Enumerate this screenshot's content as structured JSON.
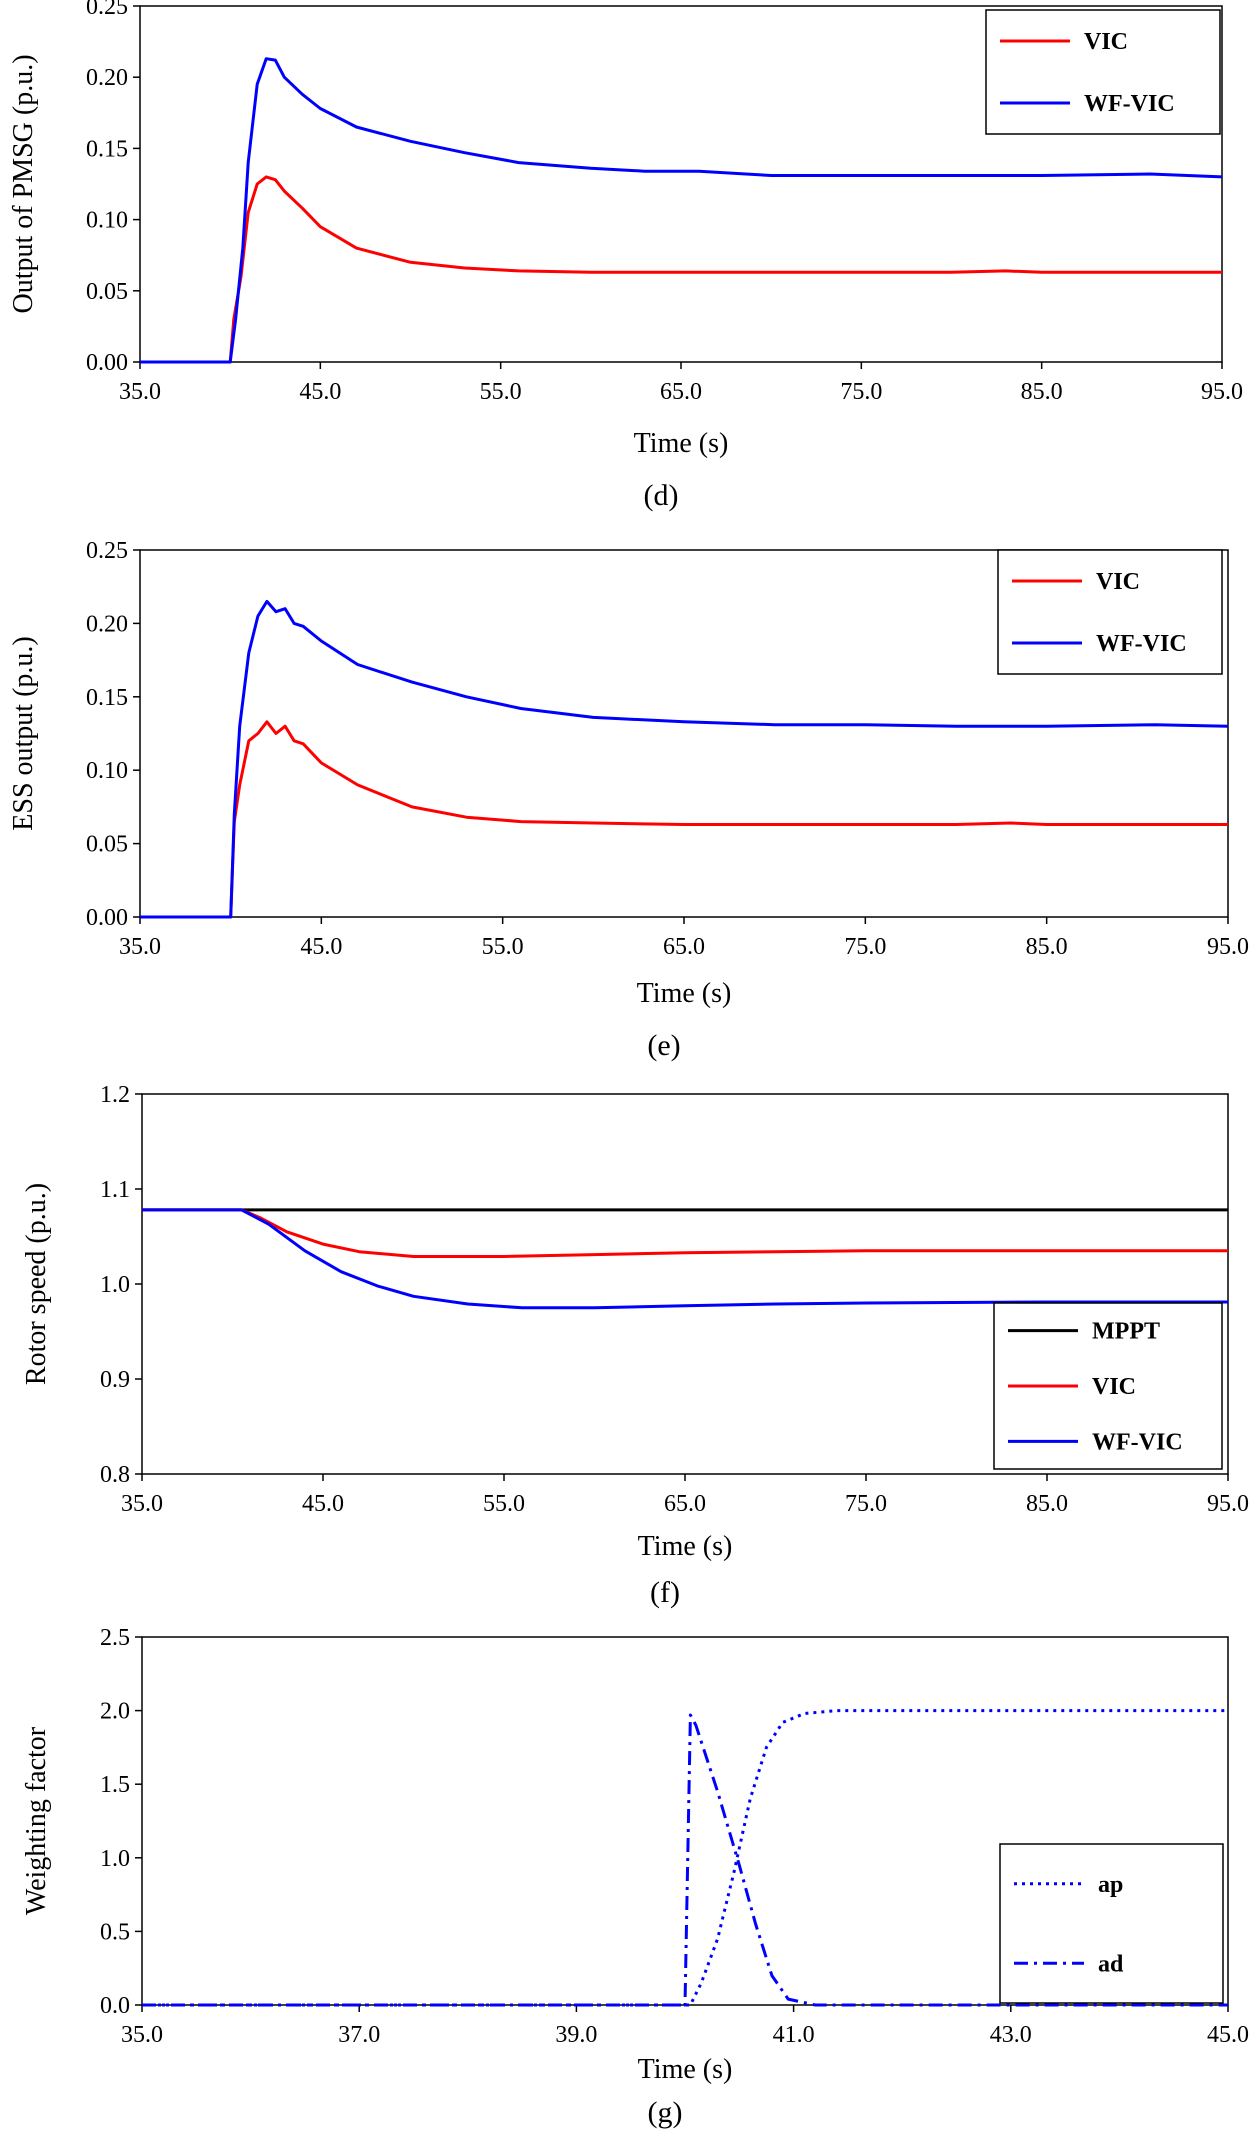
{
  "chart_data": [
    {
      "id": "d",
      "type": "line",
      "caption": "(d)",
      "xlabel": "Time (s)",
      "ylabel": "Output of PMSG (p.u.)",
      "xlim": [
        35,
        95
      ],
      "ylim": [
        0,
        0.25
      ],
      "x_ticks": [
        35,
        45,
        55,
        65,
        75,
        85,
        95
      ],
      "x_tick_labels": [
        "35.0",
        "45.0",
        "55.0",
        "65.0",
        "75.0",
        "85.0",
        "95.0"
      ],
      "y_ticks": [
        0,
        0.05,
        0.1,
        0.15,
        0.2,
        0.25
      ],
      "y_tick_labels": [
        "0.00",
        "0.05",
        "0.10",
        "0.15",
        "0.20",
        "0.25"
      ],
      "legend_position": "top-right",
      "series": [
        {
          "name": "VIC",
          "color": "#ff0000",
          "dash": "solid",
          "x": [
            35,
            40.0,
            40.2,
            40.6,
            41.0,
            41.5,
            42.0,
            42.5,
            43.0,
            44.0,
            45.0,
            47.0,
            50.0,
            53.0,
            56.0,
            60.0,
            65.0,
            70.0,
            75.0,
            80.0,
            83.0,
            85.0,
            90.0,
            95.0
          ],
          "y": [
            0,
            0,
            0.03,
            0.06,
            0.105,
            0.125,
            0.13,
            0.128,
            0.12,
            0.108,
            0.095,
            0.08,
            0.07,
            0.066,
            0.064,
            0.063,
            0.063,
            0.063,
            0.063,
            0.063,
            0.064,
            0.063,
            0.063,
            0.063
          ]
        },
        {
          "name": "WF-VIC",
          "color": "#0000ff",
          "dash": "solid",
          "x": [
            35,
            40.0,
            40.3,
            40.7,
            41.0,
            41.5,
            42.0,
            42.5,
            43.0,
            44.0,
            45.0,
            47.0,
            50.0,
            53.0,
            56.0,
            60.0,
            63.0,
            66.0,
            70.0,
            75.0,
            80.0,
            85.0,
            91.0,
            95.0
          ],
          "y": [
            0,
            0,
            0.03,
            0.08,
            0.14,
            0.195,
            0.213,
            0.212,
            0.2,
            0.188,
            0.178,
            0.165,
            0.155,
            0.147,
            0.14,
            0.136,
            0.134,
            0.134,
            0.131,
            0.131,
            0.131,
            0.131,
            0.132,
            0.13
          ]
        }
      ]
    },
    {
      "id": "e",
      "type": "line",
      "caption": "(e)",
      "xlabel": "Time (s)",
      "ylabel": "ESS output (p.u.)",
      "xlim": [
        35,
        95
      ],
      "ylim": [
        0,
        0.25
      ],
      "x_ticks": [
        35,
        45,
        55,
        65,
        75,
        85,
        95
      ],
      "x_tick_labels": [
        "35.0",
        "45.0",
        "55.0",
        "65.0",
        "75.0",
        "85.0",
        "95.0"
      ],
      "y_ticks": [
        0,
        0.05,
        0.1,
        0.15,
        0.2,
        0.25
      ],
      "y_tick_labels": [
        "0.00",
        "0.05",
        "0.10",
        "0.15",
        "0.20",
        "0.25"
      ],
      "legend_position": "top-right",
      "series": [
        {
          "name": "VIC",
          "color": "#ff0000",
          "dash": "solid",
          "x": [
            35,
            40.0,
            40.2,
            40.5,
            41.0,
            41.5,
            42.0,
            42.5,
            43.0,
            43.5,
            44.0,
            45.0,
            47.0,
            50.0,
            53.0,
            56.0,
            60.0,
            65.0,
            70.0,
            75.0,
            80.0,
            83.0,
            85.0,
            90.0,
            95.0
          ],
          "y": [
            0,
            0,
            0.065,
            0.09,
            0.12,
            0.125,
            0.133,
            0.125,
            0.13,
            0.12,
            0.118,
            0.105,
            0.09,
            0.075,
            0.068,
            0.065,
            0.064,
            0.063,
            0.063,
            0.063,
            0.063,
            0.064,
            0.063,
            0.063,
            0.063
          ]
        },
        {
          "name": "WF-VIC",
          "color": "#0000ff",
          "dash": "solid",
          "x": [
            35,
            40.0,
            40.2,
            40.5,
            41.0,
            41.5,
            42.0,
            42.5,
            43.0,
            43.5,
            44.0,
            45.0,
            47.0,
            50.0,
            53.0,
            56.0,
            60.0,
            65.0,
            70.0,
            75.0,
            80.0,
            85.0,
            91.0,
            95.0
          ],
          "y": [
            0,
            0,
            0.07,
            0.13,
            0.18,
            0.205,
            0.215,
            0.208,
            0.21,
            0.2,
            0.198,
            0.188,
            0.172,
            0.16,
            0.15,
            0.142,
            0.136,
            0.133,
            0.131,
            0.131,
            0.13,
            0.13,
            0.131,
            0.13
          ]
        }
      ]
    },
    {
      "id": "f",
      "type": "line",
      "caption": "(f)",
      "xlabel": "Time (s)",
      "ylabel": "Rotor speed (p.u.)",
      "xlim": [
        35,
        95
      ],
      "ylim": [
        0.8,
        1.2
      ],
      "x_ticks": [
        35,
        45,
        55,
        65,
        75,
        85,
        95
      ],
      "x_tick_labels": [
        "35.0",
        "45.0",
        "55.0",
        "65.0",
        "75.0",
        "85.0",
        "95.0"
      ],
      "y_ticks": [
        0.8,
        0.9,
        1.0,
        1.1,
        1.2
      ],
      "y_tick_labels": [
        "0.8",
        "0.9",
        "1.0",
        "1.1",
        "1.2"
      ],
      "legend_position": "bottom-right",
      "series": [
        {
          "name": "MPPT",
          "color": "#000000",
          "dash": "solid",
          "x": [
            35,
            95
          ],
          "y": [
            1.078,
            1.078
          ]
        },
        {
          "name": "VIC",
          "color": "#ff0000",
          "dash": "solid",
          "x": [
            35,
            40.5,
            41.5,
            43.0,
            45.0,
            47.0,
            50.0,
            55.0,
            60.0,
            65.0,
            70.0,
            75.0,
            85.0,
            95.0
          ],
          "y": [
            1.078,
            1.078,
            1.07,
            1.055,
            1.042,
            1.034,
            1.029,
            1.029,
            1.031,
            1.033,
            1.034,
            1.035,
            1.035,
            1.035
          ]
        },
        {
          "name": "WF-VIC",
          "color": "#0000ff",
          "dash": "solid",
          "x": [
            35,
            40.5,
            42.0,
            44.0,
            46.0,
            48.0,
            50.0,
            53.0,
            56.0,
            60.0,
            65.0,
            70.0,
            75.0,
            85.0,
            95.0
          ],
          "y": [
            1.078,
            1.078,
            1.063,
            1.035,
            1.013,
            0.998,
            0.987,
            0.979,
            0.975,
            0.975,
            0.977,
            0.979,
            0.98,
            0.981,
            0.981
          ]
        }
      ]
    },
    {
      "id": "g",
      "type": "line",
      "caption": "(g)",
      "xlabel": "Time (s)",
      "ylabel": "Weighting factor",
      "xlim": [
        35,
        45
      ],
      "ylim": [
        0,
        2.5
      ],
      "x_ticks": [
        35,
        37,
        39,
        41,
        43,
        45
      ],
      "x_tick_labels": [
        "35.0",
        "37.0",
        "39.0",
        "41.0",
        "43.0",
        "45.0"
      ],
      "y_ticks": [
        0,
        0.5,
        1.0,
        1.5,
        2.0,
        2.5
      ],
      "y_tick_labels": [
        "0.0",
        "0.5",
        "1.0",
        "1.5",
        "2.0",
        "2.5"
      ],
      "legend_position": "bottom-right",
      "series": [
        {
          "name": "ap",
          "color": "#0000ff",
          "dash": "dot",
          "x": [
            35,
            40.05,
            40.15,
            40.3,
            40.45,
            40.6,
            40.75,
            40.9,
            41.1,
            41.4,
            42.0,
            45.0
          ],
          "y": [
            0,
            0,
            0.15,
            0.45,
            0.9,
            1.4,
            1.75,
            1.92,
            1.98,
            2.0,
            2.0,
            2.0
          ]
        },
        {
          "name": "ad",
          "color": "#0000ff",
          "dash": "dashdot",
          "x": [
            35,
            40.0,
            40.05,
            40.1,
            40.3,
            40.5,
            40.65,
            40.8,
            40.95,
            41.2,
            45.0
          ],
          "y": [
            0,
            0,
            1.97,
            1.9,
            1.45,
            0.95,
            0.55,
            0.2,
            0.04,
            0,
            0
          ]
        }
      ]
    }
  ]
}
